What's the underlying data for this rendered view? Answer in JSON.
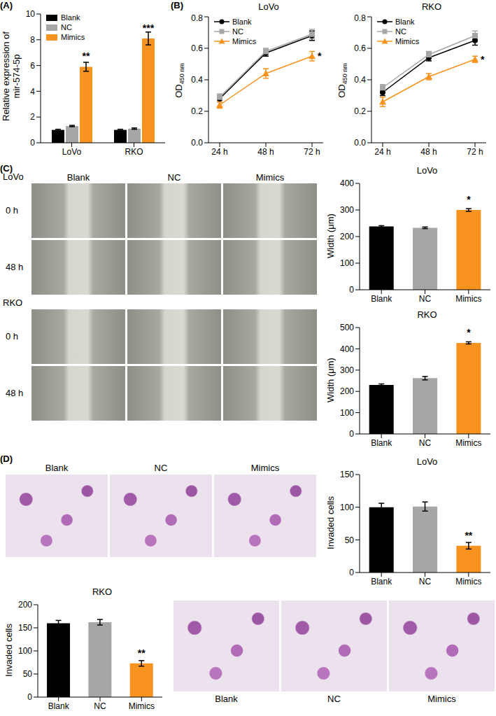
{
  "chart_data": [
    {
      "panel": "(A)",
      "type": "bar",
      "categories": [
        "LoVo",
        "RKO"
      ],
      "ylabel": [
        "Relative expression of",
        "mir-574-5p"
      ],
      "ylim": [
        0,
        10
      ],
      "yticks": [
        0,
        2,
        4,
        6,
        8,
        10
      ],
      "legend": "upper left",
      "series": [
        {
          "name": "Blank",
          "color": "#000000",
          "values": [
            1.0,
            1.0
          ],
          "errors": [
            0.05,
            0.05
          ]
        },
        {
          "name": "NC",
          "color": "#a6a6a6",
          "values": [
            1.3,
            1.1
          ],
          "errors": [
            0.05,
            0.05
          ]
        },
        {
          "name": "Mimics",
          "color": "#f7931e",
          "values": [
            5.9,
            8.1
          ],
          "errors": [
            0.35,
            0.5
          ],
          "annotations": [
            "**",
            "***"
          ]
        }
      ]
    },
    {
      "panel": "(B)",
      "type": "line",
      "title": "LoVo",
      "categories": [
        "24 h",
        "48 h",
        "72 h"
      ],
      "ylabel": "OD",
      "ylabel_subscript": "450 nm",
      "ylim": [
        0,
        0.8
      ],
      "yticks": [
        {
          "value": 0,
          "label": "0.0"
        },
        0.2,
        0.4,
        0.6,
        0.8
      ],
      "legend": "upper left",
      "series": [
        {
          "name": "Blank",
          "color": "#000000",
          "marker": "circle",
          "values": [
            0.28,
            0.57,
            0.68
          ],
          "errors": [
            0.02,
            0.02,
            0.03
          ]
        },
        {
          "name": "NC",
          "color": "#a6a6a6",
          "marker": "square",
          "values": [
            0.29,
            0.58,
            0.69
          ],
          "errors": [
            0.02,
            0.02,
            0.03
          ]
        },
        {
          "name": "Mimics",
          "color": "#f7931e",
          "marker": "triangle",
          "values": [
            0.24,
            0.44,
            0.55
          ],
          "errors": [
            0.02,
            0.03,
            0.03
          ],
          "annotations": [
            null,
            null,
            "*"
          ]
        }
      ]
    },
    {
      "type": "line",
      "title": "RKO",
      "categories": [
        "24 h",
        "48 h",
        "72 h"
      ],
      "ylabel": "OD",
      "ylabel_subscript": "450 nm",
      "ylim": [
        0,
        0.8
      ],
      "yticks": [
        {
          "value": 0,
          "label": "0.0"
        },
        0.2,
        0.4,
        0.6,
        0.8
      ],
      "legend": "upper left",
      "series": [
        {
          "name": "Blank",
          "color": "#000000",
          "marker": "circle",
          "values": [
            0.32,
            0.54,
            0.65
          ],
          "errors": [
            0.02,
            0.02,
            0.03
          ]
        },
        {
          "name": "NC",
          "color": "#a6a6a6",
          "marker": "square",
          "values": [
            0.35,
            0.56,
            0.68
          ],
          "errors": [
            0.02,
            0.02,
            0.03
          ]
        },
        {
          "name": "Mimics",
          "color": "#f7931e",
          "marker": "triangle",
          "values": [
            0.26,
            0.42,
            0.53
          ],
          "errors": [
            0.03,
            0.02,
            0.02
          ],
          "annotations": [
            null,
            null,
            "*"
          ]
        }
      ]
    },
    {
      "type": "bar",
      "title": "LoVo",
      "categories": [
        "Blank",
        "NC",
        "Mimics"
      ],
      "ylabel": "Width (μm)",
      "ylim": [
        0,
        400
      ],
      "yticks": [
        0,
        100,
        200,
        300,
        400
      ],
      "values": [
        238,
        233,
        300
      ],
      "errors": [
        3,
        3,
        5
      ],
      "colors": [
        "#000000",
        "#a6a6a6",
        "#f7931e"
      ],
      "annotations": [
        null,
        null,
        "*"
      ]
    },
    {
      "type": "bar",
      "title": "RKO",
      "categories": [
        "Blank",
        "NC",
        "Mimics"
      ],
      "ylabel": "Width (μm)",
      "ylim": [
        0,
        500
      ],
      "yticks": [
        0,
        100,
        200,
        300,
        400,
        500
      ],
      "values": [
        230,
        262,
        428
      ],
      "errors": [
        5,
        8,
        5
      ],
      "colors": [
        "#000000",
        "#a6a6a6",
        "#f7931e"
      ],
      "annotations": [
        null,
        null,
        "*"
      ]
    },
    {
      "type": "bar",
      "title": "LoVo",
      "categories": [
        "Blank",
        "NC",
        "Mimics"
      ],
      "ylabel": "Invaded cells",
      "ylim": [
        0,
        150
      ],
      "yticks": [
        0,
        50,
        100,
        150
      ],
      "values": [
        100,
        101,
        41
      ],
      "errors": [
        6,
        7,
        5
      ],
      "colors": [
        "#000000",
        "#a6a6a6",
        "#f7931e"
      ],
      "annotations": [
        null,
        null,
        "**"
      ]
    },
    {
      "type": "bar",
      "title": "RKO",
      "categories": [
        "Blank",
        "NC",
        "Mimics"
      ],
      "ylabel": "Invaded cells",
      "ylim": [
        0,
        200
      ],
      "yticks": [
        0,
        50,
        100,
        150,
        200
      ],
      "values": [
        160,
        162,
        73
      ],
      "errors": [
        6,
        6,
        6
      ],
      "colors": [
        "#000000",
        "#a6a6a6",
        "#f7931e"
      ],
      "annotations": [
        null,
        null,
        "**"
      ]
    }
  ],
  "image_panels": [
    {
      "panel": "(C)",
      "columns": [
        "Blank",
        "NC",
        "Mimics"
      ],
      "groups": [
        {
          "name": "LoVo",
          "rows": [
            "0 h",
            "48 h"
          ]
        },
        {
          "name": "RKO",
          "rows": [
            "0 h",
            "48 h"
          ]
        }
      ]
    },
    {
      "panel": "(D)",
      "columns": [
        "Blank",
        "NC",
        "Mimics"
      ]
    },
    {
      "columns": [
        "Blank",
        "NC",
        "Mimics"
      ]
    }
  ]
}
